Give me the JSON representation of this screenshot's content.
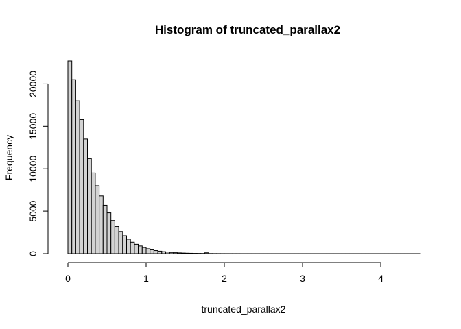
{
  "chart_data": {
    "type": "bar",
    "subtype": "histogram",
    "title": "Histogram of truncated_parallax2",
    "xlabel": "truncated_parallax2",
    "ylabel": "Frequency",
    "bin_width": 0.05,
    "x_start": 0.0,
    "xlim": [
      0,
      4.5
    ],
    "ylim": [
      0,
      22700
    ],
    "x_ticks": [
      0,
      1,
      2,
      3,
      4
    ],
    "x_tick_labels": [
      "0",
      "1",
      "2",
      "3",
      "4"
    ],
    "y_ticks": [
      0,
      5000,
      10000,
      15000,
      20000
    ],
    "y_tick_labels": [
      "0",
      "5000",
      "10000",
      "15000",
      "20000"
    ],
    "bar_fill": "#d3d3d3",
    "bar_stroke": "#000000",
    "values": [
      22700,
      20500,
      18000,
      15800,
      13500,
      11200,
      9500,
      8000,
      6800,
      5700,
      4800,
      3900,
      3200,
      2600,
      2100,
      1700,
      1350,
      1100,
      900,
      720,
      570,
      450,
      360,
      290,
      230,
      180,
      140,
      110,
      90,
      70,
      55,
      45,
      35,
      28,
      22,
      100,
      15,
      10,
      8,
      6,
      5,
      4,
      3,
      3,
      2,
      2,
      2,
      1,
      1,
      1,
      1,
      1,
      1,
      1,
      1,
      1,
      1,
      1,
      1,
      1,
      1,
      1,
      1,
      1,
      1,
      1,
      1,
      1,
      1,
      1,
      1,
      1,
      1,
      1,
      1,
      1,
      1,
      1,
      1,
      1,
      1,
      1,
      1,
      1,
      1,
      1,
      1,
      1,
      1,
      1
    ]
  }
}
